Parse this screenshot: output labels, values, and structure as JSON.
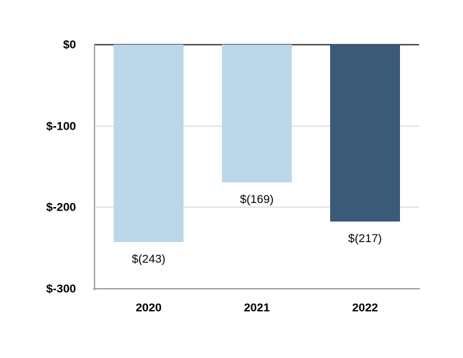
{
  "chart_data": {
    "type": "bar",
    "title": "",
    "xlabel": "",
    "ylabel": "",
    "categories": [
      "2020",
      "2021",
      "2022"
    ],
    "values": [
      -243,
      -169,
      -217
    ],
    "data_labels": [
      "$(243)",
      "$(169)",
      "$(217)"
    ],
    "bar_colors": [
      "#BDD7EA",
      "#BDD7EA",
      "#3A5A78"
    ],
    "ylim": [
      -300,
      0
    ],
    "yticks": [
      0,
      -100,
      -200,
      -300
    ],
    "ytick_labels": [
      "$0",
      "$-100",
      "$-200",
      "$-300"
    ],
    "grid": true,
    "gridline_values": [
      -100,
      -200
    ],
    "legend_position": "none",
    "colors": {
      "background": "#FFFFFF",
      "zero_line": "#595959",
      "axis_line": "#A3A3A3",
      "gridline": "#E4E4E4",
      "text": "#000000"
    }
  }
}
